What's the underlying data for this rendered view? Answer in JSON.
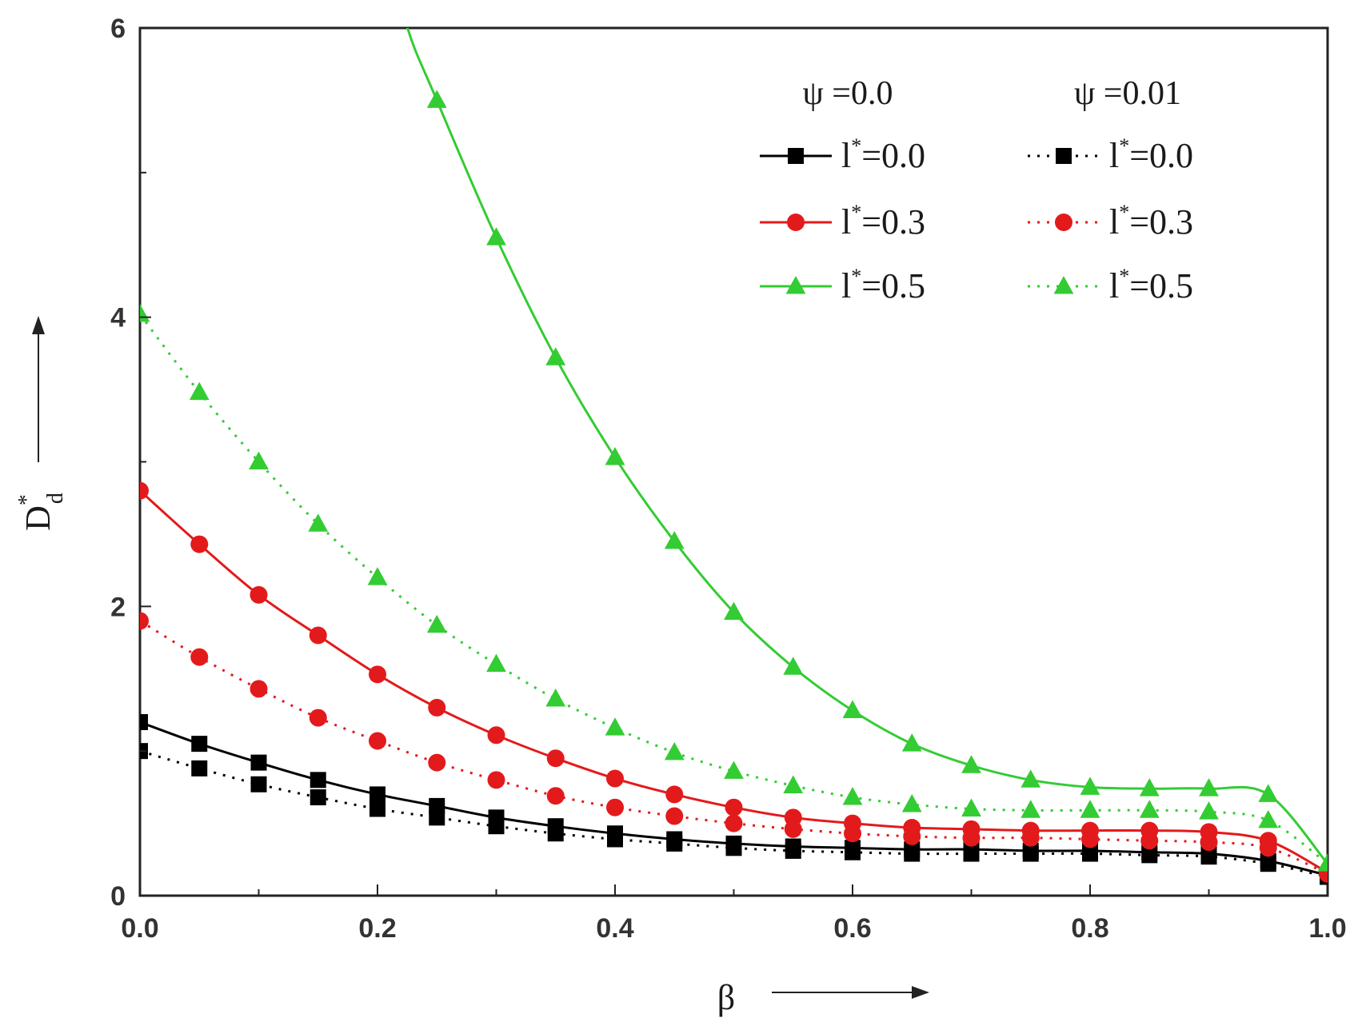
{
  "chart_data": {
    "type": "line",
    "xlabel": "β",
    "ylabel_main": "D",
    "ylabel_sup": "*",
    "ylabel_sub": "d",
    "xlim": [
      0.0,
      1.0
    ],
    "ylim": [
      0,
      6
    ],
    "xticks": [
      0.0,
      0.2,
      0.4,
      0.6,
      0.8,
      1.0
    ],
    "xtick_labels": [
      "0.0",
      "0.2",
      "0.4",
      "0.6",
      "0.8",
      "1.0"
    ],
    "yticks": [
      0,
      2,
      4,
      6
    ],
    "ytick_labels": [
      "0",
      "2",
      "4",
      "6"
    ],
    "grid": false,
    "legend_position": "top-right",
    "legend_headers": [
      "ψ =0.0",
      "ψ =0.01"
    ],
    "x": [
      0.0,
      0.05,
      0.1,
      0.15,
      0.2,
      0.25,
      0.3,
      0.35,
      0.4,
      0.45,
      0.5,
      0.55,
      0.6,
      0.65,
      0.7,
      0.75,
      0.8,
      0.85,
      0.9,
      0.95,
      1.0
    ],
    "series": [
      {
        "legend_main": "l",
        "legend_sup": "*",
        "legend_value": "=0.0",
        "group": "ψ =0.0",
        "color": "#000000",
        "line": "solid",
        "marker": "square",
        "values": [
          1.2,
          1.05,
          0.92,
          0.8,
          0.7,
          0.62,
          0.54,
          0.48,
          0.43,
          0.39,
          0.36,
          0.34,
          0.33,
          0.32,
          0.32,
          0.31,
          0.31,
          0.3,
          0.29,
          0.24,
          0.14
        ]
      },
      {
        "legend_main": "l",
        "legend_sup": "*",
        "legend_value": "=0.3",
        "group": "ψ =0.0",
        "color": "#e31a1c",
        "line": "solid",
        "marker": "circle",
        "values": [
          2.8,
          2.43,
          2.08,
          1.8,
          1.53,
          1.3,
          1.11,
          0.95,
          0.81,
          0.7,
          0.61,
          0.54,
          0.5,
          0.47,
          0.46,
          0.45,
          0.45,
          0.45,
          0.44,
          0.38,
          0.16
        ]
      },
      {
        "legend_main": "l",
        "legend_sup": "*",
        "legend_value": "=0.5",
        "group": "ψ =0.0",
        "color": "#33cc33",
        "line": "solid",
        "marker": "triangle",
        "values": [
          null,
          null,
          null,
          null,
          null,
          5.5,
          4.55,
          3.72,
          3.03,
          2.45,
          1.96,
          1.58,
          1.28,
          1.05,
          0.9,
          0.8,
          0.75,
          0.74,
          0.74,
          0.7,
          0.22
        ]
      },
      {
        "legend_main": "l",
        "legend_sup": "*",
        "legend_value": "=0.0",
        "group": "ψ =0.01",
        "color": "#000000",
        "line": "dotted",
        "marker": "square",
        "values": [
          1.0,
          0.88,
          0.77,
          0.68,
          0.6,
          0.54,
          0.48,
          0.43,
          0.39,
          0.36,
          0.33,
          0.31,
          0.3,
          0.29,
          0.29,
          0.29,
          0.29,
          0.28,
          0.27,
          0.22,
          0.13
        ]
      },
      {
        "legend_main": "l",
        "legend_sup": "*",
        "legend_value": "=0.3",
        "group": "ψ =0.01",
        "color": "#e31a1c",
        "line": "dotted",
        "marker": "circle",
        "values": [
          1.9,
          1.65,
          1.43,
          1.23,
          1.07,
          0.92,
          0.8,
          0.69,
          0.61,
          0.55,
          0.5,
          0.46,
          0.43,
          0.41,
          0.4,
          0.4,
          0.39,
          0.38,
          0.37,
          0.33,
          0.15
        ]
      },
      {
        "legend_main": "l",
        "legend_sup": "*",
        "legend_value": "=0.5",
        "group": "ψ =0.01",
        "color": "#33cc33",
        "line": "dotted",
        "marker": "triangle",
        "values": [
          4.02,
          3.48,
          3.0,
          2.57,
          2.2,
          1.87,
          1.6,
          1.36,
          1.16,
          0.99,
          0.86,
          0.76,
          0.68,
          0.63,
          0.6,
          0.59,
          0.59,
          0.59,
          0.58,
          0.52,
          0.22
        ]
      }
    ]
  }
}
